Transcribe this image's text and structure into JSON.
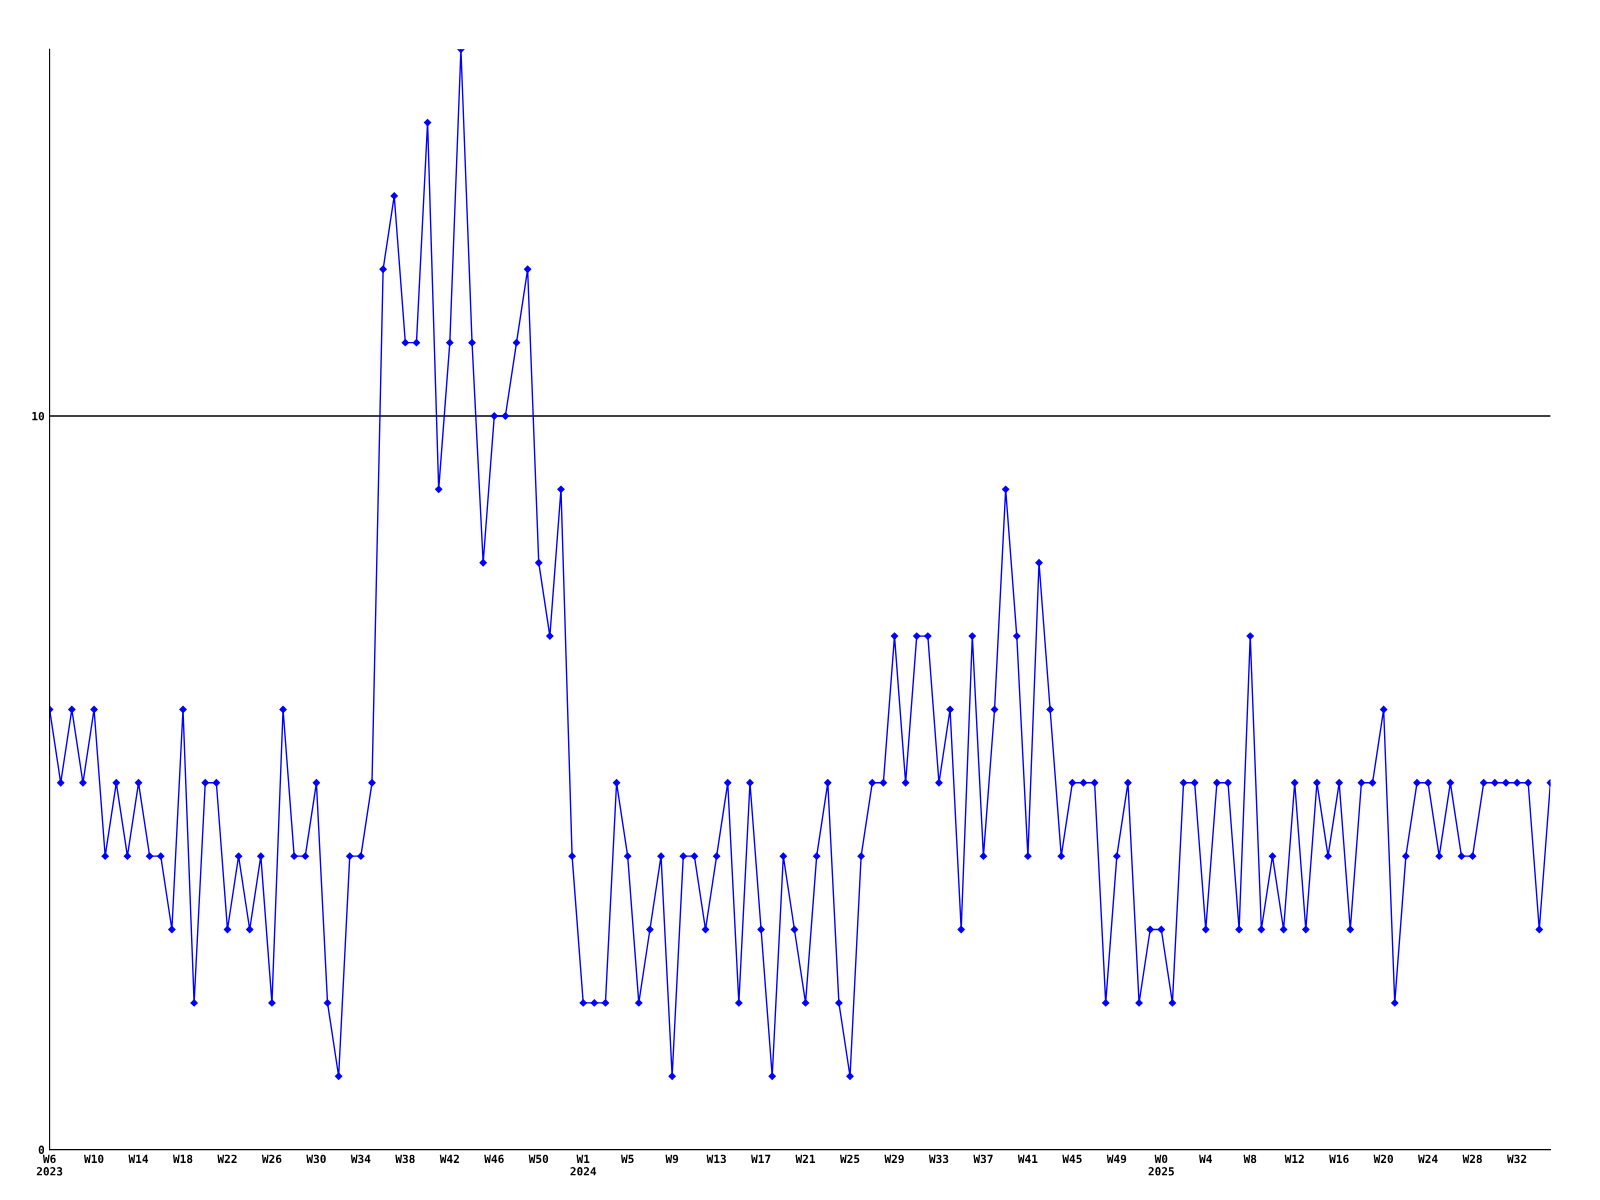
{
  "chart_data": {
    "type": "line",
    "categories": [
      "W6\n2023",
      null,
      null,
      null,
      "W10",
      null,
      null,
      null,
      "W14",
      null,
      null,
      null,
      "W18",
      null,
      null,
      null,
      "W22",
      null,
      null,
      null,
      "W26",
      null,
      null,
      null,
      "W30",
      null,
      null,
      null,
      "W34",
      null,
      null,
      null,
      "W38",
      null,
      null,
      null,
      "W42",
      null,
      null,
      null,
      "W46",
      null,
      null,
      null,
      "W50",
      null,
      null,
      null,
      "W1\n2024",
      null,
      null,
      null,
      "W5",
      null,
      null,
      null,
      "W9",
      null,
      null,
      null,
      "W13",
      null,
      null,
      null,
      "W17",
      null,
      null,
      null,
      "W21",
      null,
      null,
      null,
      "W25",
      null,
      null,
      null,
      "W29",
      null,
      null,
      null,
      "W33",
      null,
      null,
      null,
      "W37",
      null,
      null,
      null,
      "W41",
      null,
      null,
      null,
      "W45",
      null,
      null,
      null,
      "W49",
      null,
      null,
      null,
      "W0\n2025",
      null,
      null,
      null,
      "W4",
      null,
      null,
      null,
      "W8",
      null,
      null,
      null,
      "W12",
      null,
      null,
      null,
      "W16",
      null,
      null,
      null,
      "W20",
      null,
      null,
      null,
      "W24",
      null,
      null,
      null,
      "W28",
      null,
      null,
      null,
      "W32",
      null,
      null,
      null
    ],
    "series": [
      {
        "color": "#0000ff",
        "values": [
          6,
          5,
          6,
          5,
          6,
          4,
          5,
          4,
          5,
          4,
          4,
          3,
          6,
          2,
          5,
          5,
          3,
          4,
          3,
          4,
          2,
          6,
          4,
          4,
          5,
          2,
          1,
          4,
          4,
          5,
          12,
          13,
          11,
          11,
          14,
          9,
          11,
          15,
          11,
          8,
          10,
          10,
          11,
          12,
          8,
          7,
          9,
          4,
          2,
          2,
          2,
          5,
          4,
          2,
          3,
          4,
          1,
          4,
          4,
          3,
          4,
          5,
          2,
          5,
          3,
          1,
          4,
          3,
          2,
          4,
          5,
          2,
          1,
          4,
          5,
          5,
          7,
          5,
          7,
          7,
          5,
          6,
          3,
          7,
          4,
          6,
          9,
          7,
          4,
          8,
          6,
          4,
          5,
          5,
          5,
          2,
          4,
          5,
          2,
          3,
          3,
          2,
          5,
          5,
          3,
          5,
          5,
          3,
          7,
          3,
          4,
          3,
          5,
          3,
          5,
          4,
          5,
          3,
          5,
          5,
          6,
          2,
          4,
          5,
          5,
          4,
          5,
          4,
          4,
          5,
          5,
          5,
          5,
          5,
          3,
          5
        ]
      }
    ],
    "ylim": [
      0,
      15
    ],
    "yticks": [
      0,
      10
    ],
    "grid": "y",
    "marker": "diamond",
    "line_style": "solid",
    "legend": false
  }
}
